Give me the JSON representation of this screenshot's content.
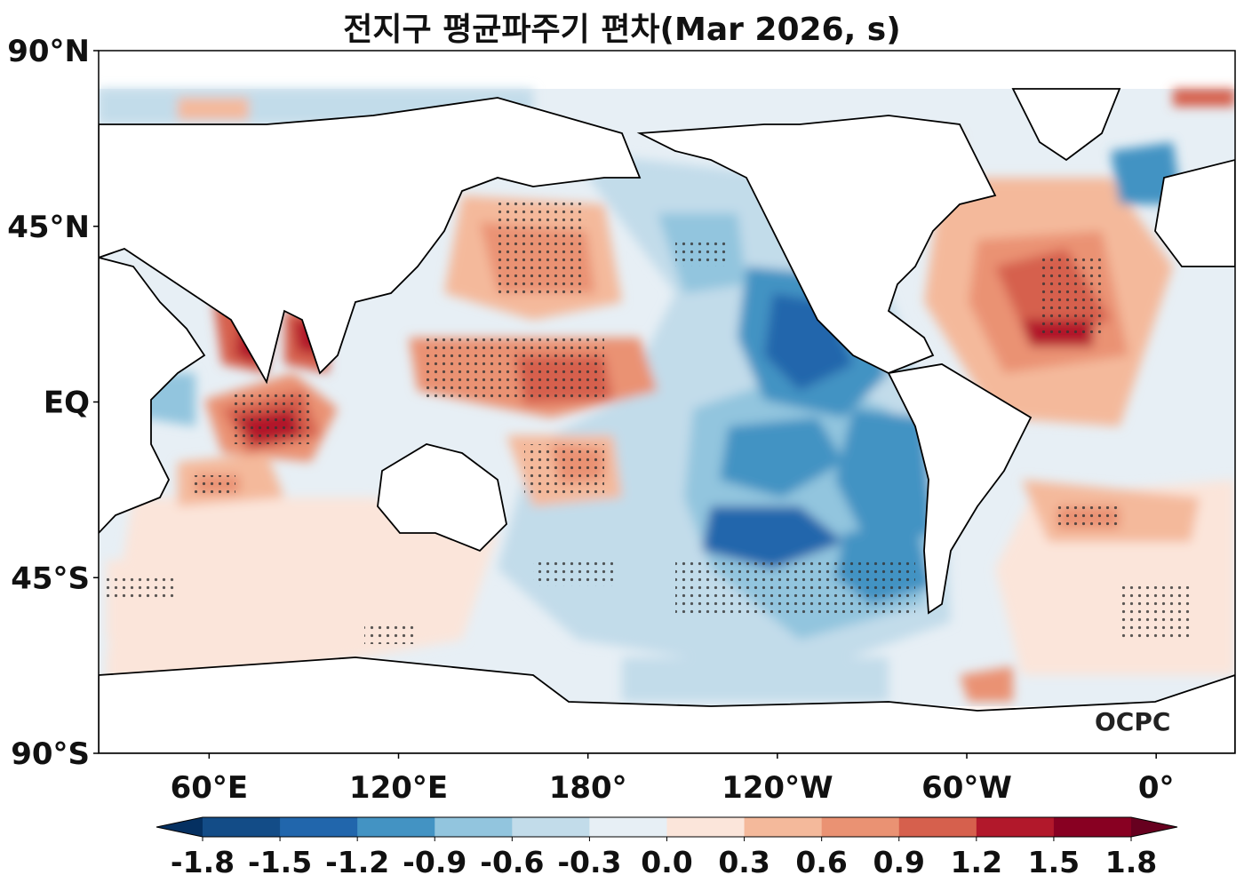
{
  "title": "전지구 평균파주기 편차(Mar 2026, s)",
  "logo": "OCPC",
  "lat_ticks": [
    {
      "label": "90°N",
      "lat": 90
    },
    {
      "label": "45°N",
      "lat": 45
    },
    {
      "label": "EQ",
      "lat": 0
    },
    {
      "label": "45°S",
      "lat": -45
    },
    {
      "label": "90°S",
      "lat": -90
    }
  ],
  "lon_ticks": [
    {
      "label": "60°E",
      "lon": 60
    },
    {
      "label": "120°E",
      "lon": 120
    },
    {
      "label": "180°",
      "lon": 180
    },
    {
      "label": "120°W",
      "lon": 240
    },
    {
      "label": "60°W",
      "lon": 300
    },
    {
      "label": "0°",
      "lon": 360
    }
  ],
  "colorbar": {
    "labels": [
      "-1.8",
      "-1.5",
      "-1.2",
      "-0.9",
      "-0.6",
      "-0.3",
      "0.0",
      "0.3",
      "0.6",
      "0.9",
      "1.2",
      "1.5",
      "1.8"
    ],
    "colors": [
      "#053061",
      "#134c87",
      "#2166ac",
      "#4393c3",
      "#92c5de",
      "#c2dcea",
      "#e7eff5",
      "#fbe5da",
      "#f4b99b",
      "#ea9273",
      "#d6604d",
      "#b2182b",
      "#880022",
      "#67001f"
    ]
  },
  "map": {
    "projection": "PlateCarree",
    "lon_range": [
      25,
      385
    ],
    "lat_range": [
      -90,
      90
    ],
    "land_color": "#ffffff",
    "coastline_color": "#000000"
  }
}
